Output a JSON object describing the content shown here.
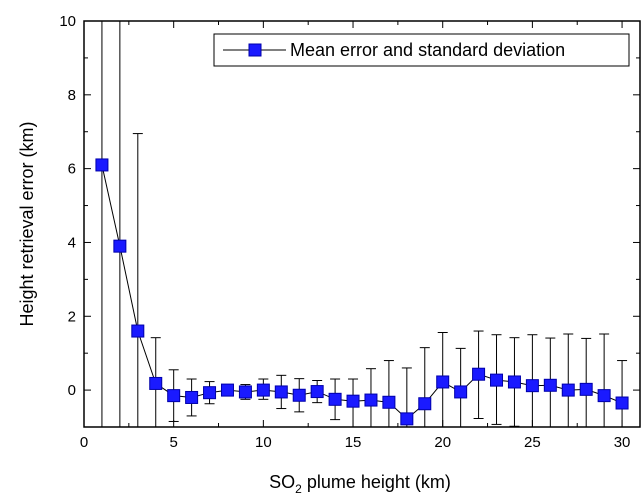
{
  "chart_data": {
    "type": "line",
    "xlabel_main": "SO",
    "xlabel_sub": "2",
    "xlabel_rest": " plume height (km)",
    "ylabel": "Height retrieval error (km)",
    "xlim": [
      0,
      31
    ],
    "ylim": [
      -1,
      10
    ],
    "xticks": [
      0,
      5,
      10,
      15,
      20,
      25,
      30
    ],
    "yticks": [
      0,
      2,
      4,
      6,
      8,
      10
    ],
    "grid": false,
    "legend_position": "top-right",
    "colors": {
      "marker": "#1a1aff",
      "marker_edge": "#0000aa",
      "line": "#000000",
      "errorbar": "#000000"
    },
    "series": [
      {
        "name": "Mean error and standard deviation",
        "x": [
          1,
          2,
          3,
          4,
          5,
          6,
          7,
          8,
          9,
          10,
          11,
          12,
          13,
          14,
          15,
          16,
          17,
          18,
          19,
          20,
          21,
          22,
          23,
          24,
          25,
          26,
          27,
          28,
          29,
          30
        ],
        "y": [
          6.1,
          3.9,
          1.6,
          0.18,
          -0.15,
          -0.2,
          -0.07,
          0.0,
          -0.05,
          0.0,
          -0.05,
          -0.14,
          -0.04,
          -0.25,
          -0.3,
          -0.27,
          -0.33,
          -0.78,
          -0.37,
          0.22,
          -0.05,
          0.43,
          0.27,
          0.22,
          0.12,
          0.13,
          0.0,
          0.02,
          -0.15,
          -0.35
        ],
        "err_low": [
          7.1,
          4.9,
          3.0,
          1.4,
          0.7,
          0.5,
          0.3,
          0.15,
          0.2,
          0.25,
          0.45,
          0.45,
          0.3,
          0.55,
          0.7,
          0.85,
          1.15,
          1.15,
          1.55,
          1.35,
          1.2,
          1.2,
          1.2,
          1.2,
          1.4,
          1.3,
          1.5,
          1.4,
          1.7,
          1.15
        ],
        "err_high": [
          4.0,
          6.5,
          5.35,
          1.24,
          0.7,
          0.5,
          0.3,
          0.15,
          0.2,
          0.3,
          0.45,
          0.45,
          0.3,
          0.55,
          0.6,
          0.85,
          1.13,
          1.38,
          1.52,
          1.34,
          1.18,
          1.17,
          1.23,
          1.2,
          1.38,
          1.28,
          1.52,
          1.38,
          1.67,
          1.15
        ]
      }
    ]
  }
}
